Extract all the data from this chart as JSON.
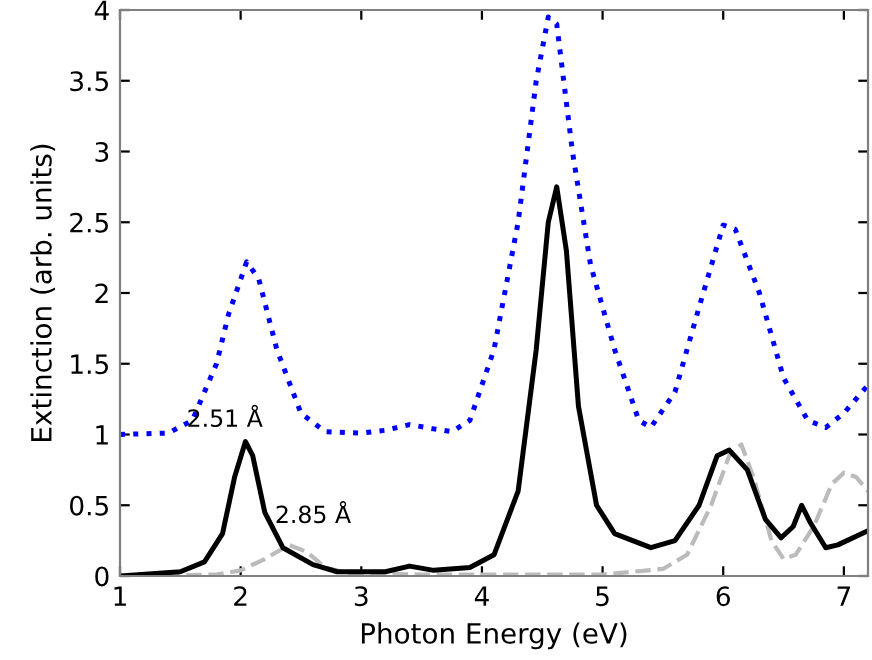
{
  "chart_data": {
    "type": "line",
    "xlabel": "Photon Energy (eV)",
    "ylabel": "Extinction (arb. units)",
    "xlim": [
      1,
      7.2
    ],
    "ylim": [
      0,
      4
    ],
    "xticks": [
      1,
      2,
      3,
      4,
      5,
      6,
      7
    ],
    "yticks": [
      0,
      0.5,
      1,
      1.5,
      2,
      2.5,
      3,
      3.5,
      4
    ],
    "grid": false,
    "marker": "none",
    "series": [
      {
        "color": "#0000ff",
        "line_style": "dotted",
        "x": [
          1,
          1.4,
          1.6,
          1.8,
          1.9,
          2.05,
          2.15,
          2.3,
          2.5,
          2.7,
          3.0,
          3.2,
          3.4,
          3.6,
          3.75,
          3.9,
          4.1,
          4.3,
          4.45,
          4.55,
          4.62,
          4.75,
          4.9,
          5.1,
          5.3,
          5.4,
          5.6,
          5.8,
          6.0,
          6.1,
          6.3,
          6.5,
          6.7,
          6.85,
          7.0,
          7.2
        ],
        "values": [
          1.0,
          1.01,
          1.1,
          1.5,
          1.85,
          2.22,
          2.1,
          1.6,
          1.15,
          1.02,
          1.01,
          1.03,
          1.07,
          1.04,
          1.02,
          1.1,
          1.6,
          2.5,
          3.5,
          3.95,
          3.9,
          3.0,
          2.2,
          1.6,
          1.1,
          1.05,
          1.3,
          1.9,
          2.48,
          2.45,
          2.0,
          1.4,
          1.1,
          1.05,
          1.15,
          1.35
        ]
      },
      {
        "color": "#bbbbbb",
        "line_style": "dashed",
        "x": [
          1,
          1.8,
          2.0,
          2.2,
          2.4,
          2.55,
          2.7,
          2.9,
          3.5,
          5.0,
          5.5,
          5.7,
          5.9,
          6.05,
          6.15,
          6.25,
          6.4,
          6.5,
          6.6,
          6.75,
          6.9,
          7.0,
          7.1,
          7.2
        ],
        "values": [
          0,
          0.01,
          0.04,
          0.12,
          0.22,
          0.17,
          0.06,
          0.02,
          0.01,
          0.01,
          0.05,
          0.15,
          0.5,
          0.85,
          0.93,
          0.7,
          0.25,
          0.12,
          0.15,
          0.35,
          0.65,
          0.73,
          0.7,
          0.6
        ]
      },
      {
        "color": "#000000",
        "line_style": "solid",
        "x": [
          1,
          1.5,
          1.7,
          1.85,
          1.95,
          2.04,
          2.1,
          2.2,
          2.35,
          2.6,
          2.8,
          3.2,
          3.4,
          3.6,
          3.9,
          4.1,
          4.3,
          4.45,
          4.55,
          4.62,
          4.7,
          4.8,
          4.95,
          5.1,
          5.4,
          5.6,
          5.8,
          5.95,
          6.05,
          6.2,
          6.35,
          6.48,
          6.58,
          6.65,
          6.72,
          6.85,
          6.95,
          7.2
        ],
        "values": [
          0,
          0.03,
          0.1,
          0.3,
          0.7,
          0.95,
          0.85,
          0.45,
          0.2,
          0.08,
          0.03,
          0.03,
          0.07,
          0.04,
          0.06,
          0.15,
          0.6,
          1.6,
          2.5,
          2.75,
          2.3,
          1.2,
          0.5,
          0.3,
          0.2,
          0.25,
          0.5,
          0.85,
          0.89,
          0.75,
          0.4,
          0.27,
          0.35,
          0.5,
          0.38,
          0.2,
          0.22,
          0.32
        ]
      }
    ],
    "annotations": [
      "2.51 Å",
      "2.85 Å"
    ]
  }
}
